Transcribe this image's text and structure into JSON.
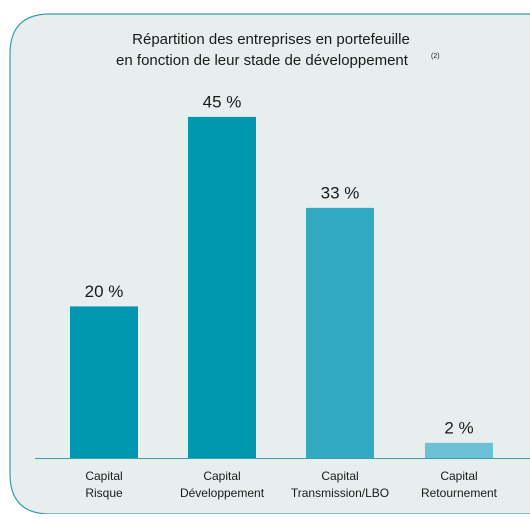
{
  "chart_data": {
    "type": "bar",
    "title": [
      "Répartition des entreprises en portefeuille",
      "en fonction de leur stade de développement"
    ],
    "title_note": "(2)",
    "categories": [
      [
        "Capital",
        "Risque"
      ],
      [
        "Capital",
        "Développement"
      ],
      [
        "Capital",
        "Transmission/LBO"
      ],
      [
        "Capital",
        "Retournement"
      ]
    ],
    "values": [
      20,
      45,
      33,
      2
    ],
    "value_labels": [
      "20 %",
      "45 %",
      "33 %",
      "2 %"
    ],
    "colors": [
      "#0098b1",
      "#0098b1",
      "#33a9c2",
      "#6cc1d6"
    ]
  }
}
